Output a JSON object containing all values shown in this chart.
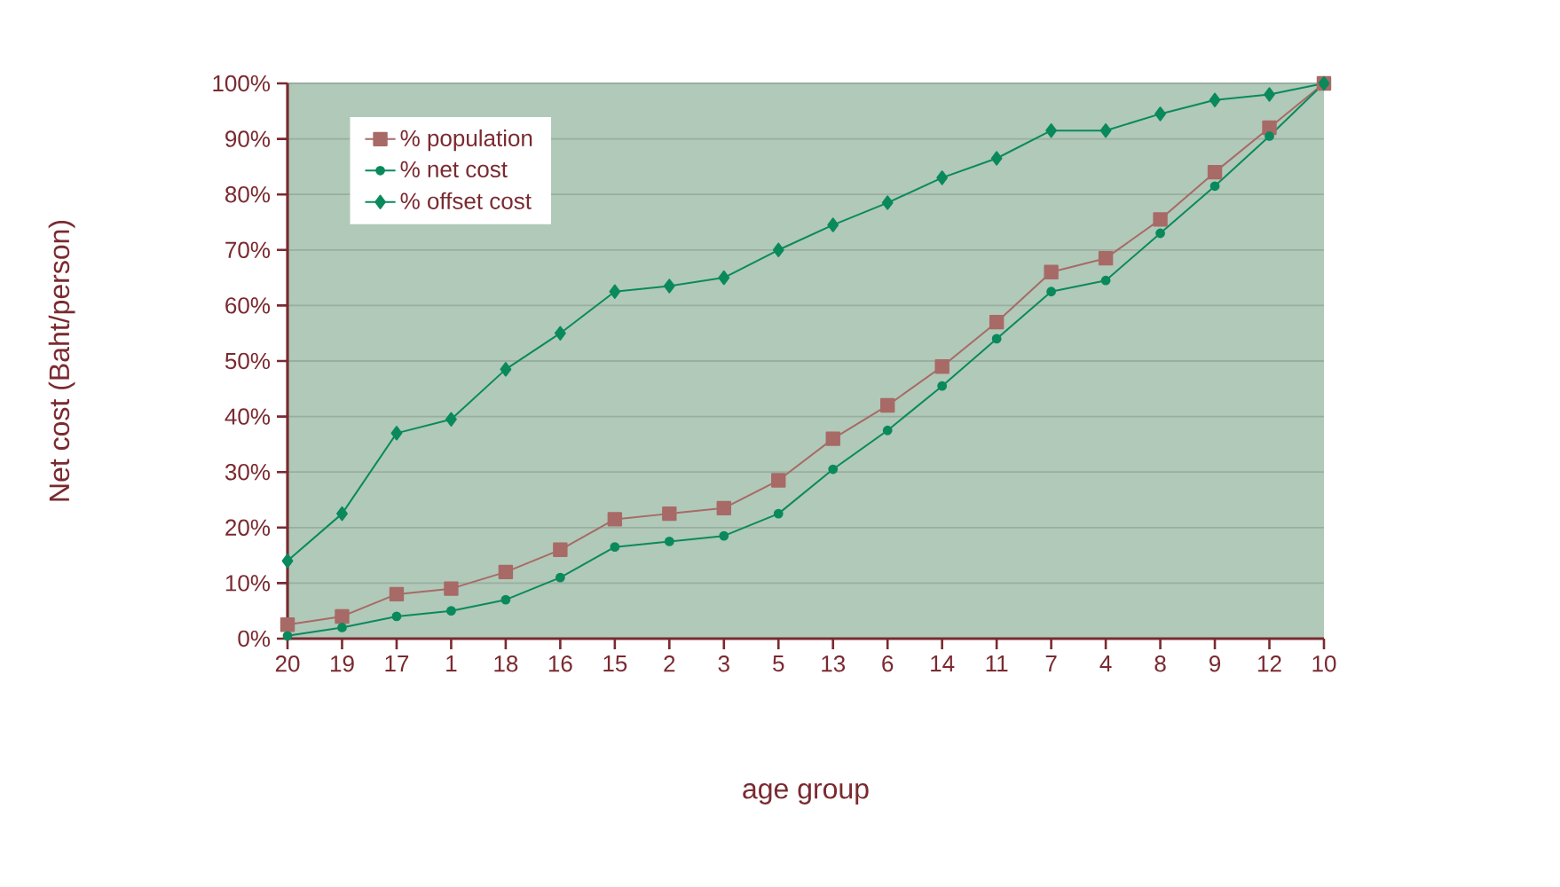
{
  "chart_data": {
    "type": "line",
    "xlabel": "age group",
    "ylabel": "Net cost (Baht/person)",
    "categories": [
      "20",
      "19",
      "17",
      "1",
      "18",
      "16",
      "15",
      "2",
      "3",
      "5",
      "13",
      "6",
      "14",
      "11",
      "7",
      "4",
      "8",
      "9",
      "12",
      "10"
    ],
    "series": [
      {
        "name": "% population",
        "color": "#a86a66",
        "marker": "square",
        "values": [
          2.5,
          4,
          8,
          9,
          12,
          16,
          21.5,
          22.5,
          23.5,
          28.5,
          36,
          42,
          49,
          57,
          66,
          68.5,
          75.5,
          84,
          92,
          100
        ]
      },
      {
        "name": "% net cost",
        "color": "#0a8a5c",
        "marker": "circle",
        "values": [
          0.5,
          2,
          4,
          5,
          7,
          11,
          16.5,
          17.5,
          18.5,
          22.5,
          30.5,
          37.5,
          45.5,
          54,
          62.5,
          64.5,
          73,
          81.5,
          90.5,
          100
        ]
      },
      {
        "name": "% offset cost",
        "color": "#0a8a5c",
        "marker": "diamond",
        "values": [
          14,
          22.5,
          37,
          39.5,
          48.5,
          55,
          62.5,
          63.5,
          65,
          70,
          74.5,
          78.5,
          83,
          86.5,
          91.5,
          91.5,
          94.5,
          97,
          98,
          100
        ]
      }
    ],
    "ylim": [
      0,
      100
    ],
    "yticks": [
      {
        "value": 0,
        "label": "0%"
      },
      {
        "value": 10,
        "label": "10%"
      },
      {
        "value": 20,
        "label": "20%"
      },
      {
        "value": 30,
        "label": "30%"
      },
      {
        "value": 40,
        "label": "40%"
      },
      {
        "value": 50,
        "label": "50%"
      },
      {
        "value": 60,
        "label": "60%"
      },
      {
        "value": 70,
        "label": "70%"
      },
      {
        "value": 80,
        "label": "80%"
      },
      {
        "value": 90,
        "label": "90%"
      },
      {
        "value": 100,
        "label": "100%"
      }
    ],
    "grid": "y",
    "legend": "top left"
  }
}
